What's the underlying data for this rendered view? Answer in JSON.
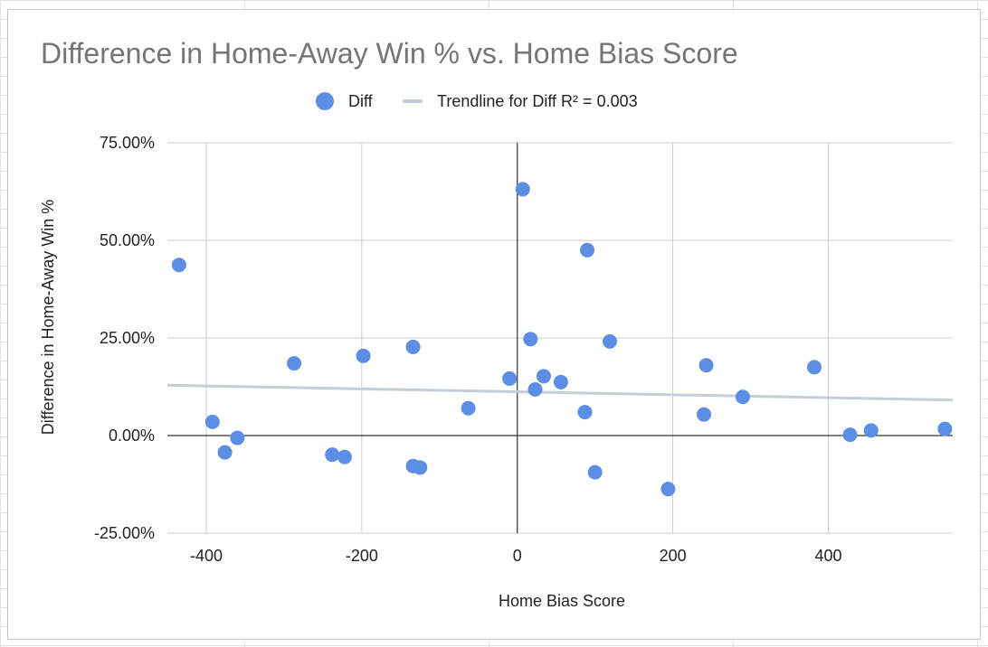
{
  "chart_data": {
    "type": "scatter",
    "title": "Difference in Home-Away Win % vs. Home Bias Score",
    "xlabel": "Home Bias Score",
    "ylabel": "Difference in Home-Away Win %",
    "xlim": [
      -450,
      560
    ],
    "ylim": [
      -25,
      75
    ],
    "x_ticks": [
      -400,
      -200,
      0,
      200,
      400
    ],
    "x_tick_labels": [
      "-400",
      "-200",
      "0",
      "200",
      "400"
    ],
    "y_ticks": [
      -25,
      0,
      25,
      50,
      75
    ],
    "y_tick_labels": [
      "-25.00%",
      "0.00%",
      "25.00%",
      "50.00%",
      "75.00%"
    ],
    "grid": true,
    "legend_position": "top",
    "series": [
      {
        "name": "Diff",
        "color": "#5b8ee4",
        "points": [
          {
            "x": -435,
            "y": 43.7
          },
          {
            "x": -392,
            "y": 3.5
          },
          {
            "x": -376,
            "y": -4.3
          },
          {
            "x": -360,
            "y": -0.6
          },
          {
            "x": -287,
            "y": 18.5
          },
          {
            "x": -238,
            "y": -4.9
          },
          {
            "x": -222,
            "y": -5.5
          },
          {
            "x": -198,
            "y": 20.4
          },
          {
            "x": -134,
            "y": 22.7
          },
          {
            "x": -134,
            "y": -7.8
          },
          {
            "x": -125,
            "y": -8.2
          },
          {
            "x": -63,
            "y": 7.0
          },
          {
            "x": -10,
            "y": 14.6
          },
          {
            "x": 7,
            "y": 63.1
          },
          {
            "x": 17,
            "y": 24.7
          },
          {
            "x": 23,
            "y": 11.8
          },
          {
            "x": 34,
            "y": 15.2
          },
          {
            "x": 56,
            "y": 13.7
          },
          {
            "x": 87,
            "y": 6.0
          },
          {
            "x": 90,
            "y": 47.5
          },
          {
            "x": 100,
            "y": -9.4
          },
          {
            "x": 119,
            "y": 24.1
          },
          {
            "x": 194,
            "y": -13.7
          },
          {
            "x": 240,
            "y": 5.4
          },
          {
            "x": 243,
            "y": 18.0
          },
          {
            "x": 290,
            "y": 9.9
          },
          {
            "x": 382,
            "y": 17.5
          },
          {
            "x": 428,
            "y": 0.2
          },
          {
            "x": 455,
            "y": 1.3
          },
          {
            "x": 550,
            "y": 1.7
          }
        ]
      }
    ],
    "trendline": {
      "name": "Trendline for Diff R² = 0.003",
      "color": "#c6cdd6",
      "from": {
        "x": -450,
        "y": 12.9
      },
      "to": {
        "x": 560,
        "y": 9.1
      }
    }
  }
}
